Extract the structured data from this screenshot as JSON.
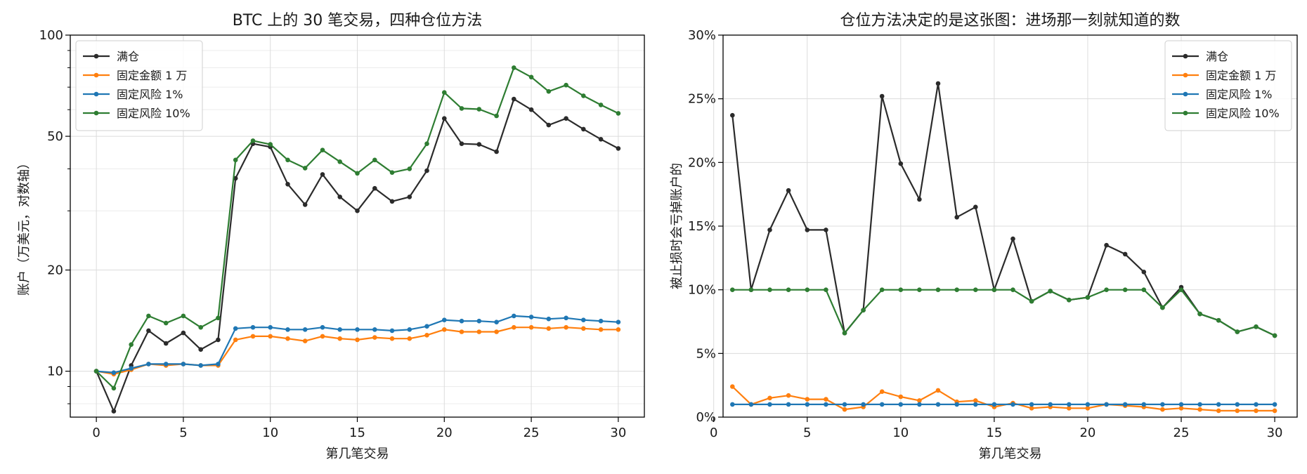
{
  "chart_data": [
    {
      "type": "line",
      "title": "BTC 上的 30 笔交易，四种仓位方法",
      "xlabel": "第几笔交易",
      "ylabel": "账户（万美元，对数轴）",
      "yscale": "log",
      "xlim": [
        -1.5,
        31.5
      ],
      "ylim": [
        7.3,
        100
      ],
      "x_ticks": [
        0,
        5,
        10,
        15,
        20,
        25,
        30
      ],
      "y_ticks": [
        10,
        20,
        50,
        100
      ],
      "y_tick_labels": [
        "10",
        "20",
        "50",
        "100"
      ],
      "grid": true,
      "legend_position": "top-left",
      "x": [
        0,
        1,
        2,
        3,
        4,
        5,
        6,
        7,
        8,
        9,
        10,
        11,
        12,
        13,
        14,
        15,
        16,
        17,
        18,
        19,
        20,
        21,
        22,
        23,
        24,
        25,
        26,
        27,
        28,
        29,
        30
      ],
      "series": [
        {
          "name": "满仓",
          "color": "#2b2b2b",
          "values": [
            10,
            7.6,
            10.4,
            13.2,
            12.1,
            13.0,
            11.6,
            12.4,
            37.5,
            47.5,
            46.5,
            36.0,
            31.3,
            38.5,
            33.0,
            30.0,
            35.0,
            32.0,
            33.0,
            39.5,
            56.5,
            47.5,
            47.3,
            45.0,
            64.5,
            60.0,
            54.0,
            56.5,
            52.5,
            49.0,
            46.0
          ]
        },
        {
          "name": "固定金额 1 万",
          "color": "#ff7f0e",
          "values": [
            10,
            9.8,
            10.1,
            10.5,
            10.4,
            10.5,
            10.4,
            10.4,
            12.4,
            12.7,
            12.7,
            12.5,
            12.3,
            12.7,
            12.5,
            12.4,
            12.6,
            12.5,
            12.5,
            12.8,
            13.3,
            13.1,
            13.1,
            13.1,
            13.5,
            13.5,
            13.4,
            13.5,
            13.4,
            13.3,
            13.3
          ]
        },
        {
          "name": "固定风险 1%",
          "color": "#1f77b4",
          "values": [
            10,
            9.9,
            10.2,
            10.5,
            10.5,
            10.5,
            10.4,
            10.5,
            13.4,
            13.5,
            13.5,
            13.3,
            13.3,
            13.5,
            13.3,
            13.3,
            13.3,
            13.2,
            13.3,
            13.6,
            14.2,
            14.1,
            14.1,
            14.0,
            14.6,
            14.5,
            14.3,
            14.4,
            14.2,
            14.1,
            14.0
          ]
        },
        {
          "name": "固定风险 10%",
          "color": "#2e7d32",
          "values": [
            10,
            8.9,
            12.0,
            14.6,
            13.9,
            14.6,
            13.5,
            14.4,
            42.5,
            48.5,
            47.3,
            42.5,
            40.2,
            45.5,
            42.0,
            38.8,
            42.5,
            39.0,
            40.0,
            47.5,
            67.5,
            60.5,
            60.2,
            57.5,
            80.0,
            75.0,
            68.0,
            71.0,
            66.0,
            62.0,
            58.5
          ]
        }
      ]
    },
    {
      "type": "line",
      "title": "仓位方法决定的是这张图：进场那一刻就知道的数",
      "xlabel": "第几笔交易",
      "ylabel": "被止损时会亏掉账户的",
      "xlim": [
        0.5,
        31.2
      ],
      "ylim": [
        0,
        30
      ],
      "x_ticks": [
        0,
        5,
        10,
        15,
        20,
        25,
        30
      ],
      "y_ticks": [
        0,
        5,
        10,
        15,
        20,
        25,
        30
      ],
      "y_tick_labels": [
        "0%",
        "5%",
        "10%",
        "15%",
        "20%",
        "25%",
        "30%"
      ],
      "grid": true,
      "legend_position": "top-right",
      "x": [
        1,
        2,
        3,
        4,
        5,
        6,
        7,
        8,
        9,
        10,
        11,
        12,
        13,
        14,
        15,
        16,
        17,
        18,
        19,
        20,
        21,
        22,
        23,
        24,
        25,
        26,
        27,
        28,
        29,
        30
      ],
      "series": [
        {
          "name": "满仓",
          "color": "#2b2b2b",
          "values": [
            23.7,
            10.0,
            14.7,
            17.8,
            14.7,
            14.7,
            6.6,
            8.4,
            25.2,
            19.9,
            17.1,
            26.2,
            15.7,
            16.5,
            10.0,
            14.0,
            9.1,
            9.9,
            9.2,
            9.4,
            13.5,
            12.8,
            11.4,
            8.6,
            10.2,
            8.1,
            7.6,
            6.7,
            7.1,
            6.4
          ]
        },
        {
          "name": "固定金额 1 万",
          "color": "#ff7f0e",
          "values": [
            2.4,
            1.0,
            1.5,
            1.7,
            1.4,
            1.4,
            0.6,
            0.8,
            2.0,
            1.6,
            1.3,
            2.1,
            1.2,
            1.3,
            0.8,
            1.1,
            0.7,
            0.8,
            0.7,
            0.7,
            1.0,
            0.9,
            0.8,
            0.6,
            0.7,
            0.6,
            0.5,
            0.5,
            0.5,
            0.5
          ]
        },
        {
          "name": "固定风险 1%",
          "color": "#1f77b4",
          "values": [
            1,
            1,
            1,
            1,
            1,
            1,
            1,
            1,
            1,
            1,
            1,
            1,
            1,
            1,
            1,
            1,
            1,
            1,
            1,
            1,
            1,
            1,
            1,
            1,
            1,
            1,
            1,
            1,
            1,
            1
          ]
        },
        {
          "name": "固定风险 10%",
          "color": "#2e7d32",
          "values": [
            10,
            10,
            10,
            10,
            10,
            10,
            6.6,
            8.4,
            10,
            10,
            10,
            10,
            10,
            10,
            10,
            10,
            9.1,
            9.9,
            9.2,
            9.4,
            10,
            10,
            10,
            8.6,
            10,
            8.1,
            7.6,
            6.7,
            7.1,
            6.4
          ]
        }
      ]
    }
  ]
}
